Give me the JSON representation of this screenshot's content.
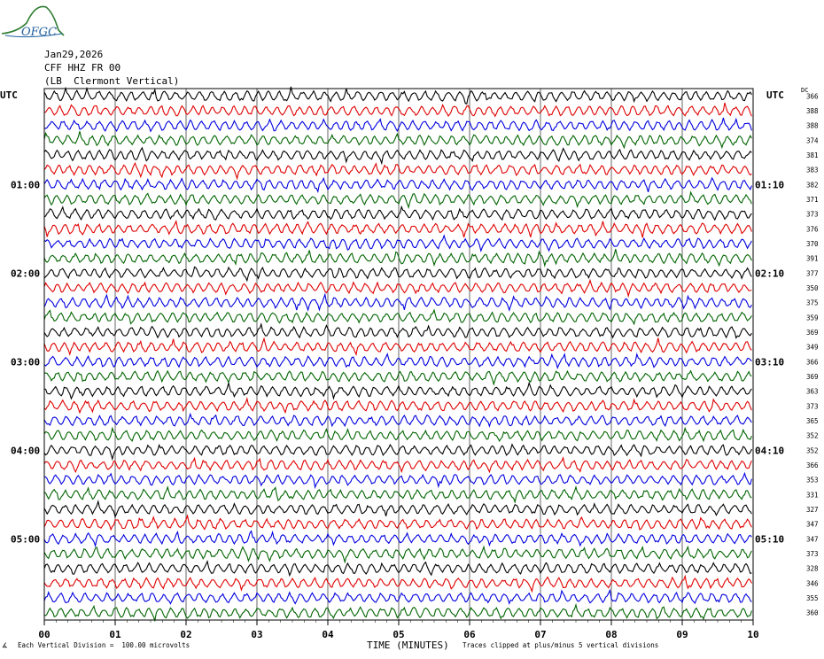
{
  "logo": {
    "text": "OFGC",
    "color": "#1f5f9e",
    "mountain_color": "#2e7d32"
  },
  "header": {
    "date": "Jan29,2026",
    "station": "CFF HHZ FR 00",
    "location": "(LB  Clermont Vertical)"
  },
  "axis": {
    "left_label": "UTC",
    "right_label": "UTC",
    "dc_label": "DC",
    "x_title": "TIME (MINUTES)"
  },
  "footer": {
    "scale_note": "Each Vertical Division =  100.00 microvolts",
    "clip_note": "Traces clipped at plus/minus 5 vertical divisions",
    "corner_mark": "∡"
  },
  "chart_data": {
    "type": "line",
    "title": "",
    "xlabel": "TIME (MINUTES)",
    "ylabel": "",
    "x_ticks": [
      "00",
      "01",
      "02",
      "03",
      "04",
      "05",
      "06",
      "07",
      "08",
      "09",
      "10"
    ],
    "xlim": [
      0,
      10
    ],
    "grid": true,
    "left_time_labels": [
      {
        "row": 6,
        "text": "01:00"
      },
      {
        "row": 12,
        "text": "02:00"
      },
      {
        "row": 18,
        "text": "03:00"
      },
      {
        "row": 24,
        "text": "04:00"
      },
      {
        "row": 30,
        "text": "05:00"
      }
    ],
    "right_time_labels": [
      {
        "row": 6,
        "text": "01:10"
      },
      {
        "row": 12,
        "text": "02:10"
      },
      {
        "row": 18,
        "text": "03:10"
      },
      {
        "row": 24,
        "text": "04:10"
      },
      {
        "row": 30,
        "text": "05:10"
      }
    ],
    "dc_offsets": [
      "366",
      "388",
      "388",
      "374",
      "381",
      "383",
      "382",
      "371",
      "373",
      "376",
      "370",
      "391",
      "377",
      "350",
      "375",
      "359",
      "369",
      "349",
      "366",
      "369",
      "363",
      "373",
      "365",
      "352",
      "352",
      "366",
      "353",
      "331",
      "327",
      "347",
      "347",
      "373",
      "328",
      "346",
      "355",
      "360"
    ],
    "trace_colors": [
      "#000000",
      "#e00000",
      "#0000e0",
      "#006400"
    ],
    "rows": 36
  }
}
